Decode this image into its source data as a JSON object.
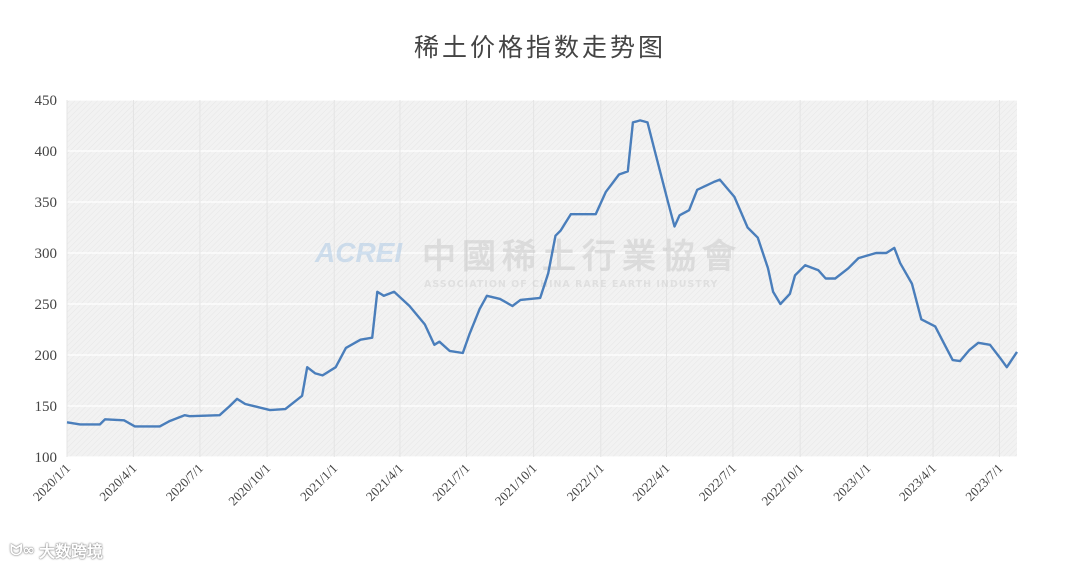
{
  "chart_data": {
    "type": "line",
    "title": "稀土价格指数走势图",
    "xlabel": "",
    "ylabel": "",
    "ylim": [
      100,
      450
    ],
    "xlim": [
      "2020-01-01",
      "2023-07-25"
    ],
    "yticks": [
      "100",
      "150",
      "200",
      "250",
      "300",
      "350",
      "400",
      "450"
    ],
    "xticks": [
      "2020/1/1",
      "2020/4/1",
      "2020/7/1",
      "2020/10/1",
      "2021/1/1",
      "2021/4/1",
      "2021/7/1",
      "2021/10/1",
      "2022/1/1",
      "2022/4/1",
      "2022/7/1",
      "2022/10/1",
      "2023/1/1",
      "2023/4/1",
      "2023/7/1"
    ],
    "grid": true,
    "legend": "none",
    "colors": {
      "line": "#4a7ebb",
      "plot_bg": "#f1f1f1",
      "grid": "#ffffff"
    },
    "series": [
      {
        "x": [
          "2020-01-01",
          "2020-01-19",
          "2020-02-15",
          "2020-02-22",
          "2020-03-19",
          "2020-04-03",
          "2020-05-07",
          "2020-05-20",
          "2020-06-10",
          "2020-06-17",
          "2020-07-28",
          "2020-08-11",
          "2020-08-21",
          "2020-09-01",
          "2020-10-05",
          "2020-10-26",
          "2020-11-09",
          "2020-11-18",
          "2020-11-25",
          "2020-12-06",
          "2020-12-16",
          "2021-01-03",
          "2021-01-17",
          "2021-02-06",
          "2021-02-22",
          "2021-03-01",
          "2021-03-10",
          "2021-03-24",
          "2021-04-14",
          "2021-05-05",
          "2021-05-18",
          "2021-05-25",
          "2021-06-08",
          "2021-06-26",
          "2021-07-05",
          "2021-07-19",
          "2021-07-29",
          "2021-08-16",
          "2021-09-02",
          "2021-09-13",
          "2021-10-10",
          "2021-10-21",
          "2021-10-31",
          "2021-11-07",
          "2021-11-21",
          "2021-12-25",
          "2022-01-08",
          "2022-01-26",
          "2022-02-07",
          "2022-02-14",
          "2022-02-24",
          "2022-03-06",
          "2022-03-16",
          "2022-03-25",
          "2022-04-03",
          "2022-04-12",
          "2022-04-19",
          "2022-05-02",
          "2022-05-13",
          "2022-06-06",
          "2022-06-13",
          "2022-07-03",
          "2022-07-21",
          "2022-08-04",
          "2022-08-18",
          "2022-08-25",
          "2022-09-04",
          "2022-09-17",
          "2022-09-24",
          "2022-10-08",
          "2022-10-26",
          "2022-11-05",
          "2022-11-18",
          "2022-12-06",
          "2022-12-20",
          "2023-01-13",
          "2023-01-27",
          "2023-02-07",
          "2023-02-15",
          "2023-03-03",
          "2023-03-16",
          "2023-04-04",
          "2023-04-17",
          "2023-04-28",
          "2023-05-08",
          "2023-05-21",
          "2023-06-02",
          "2023-06-18",
          "2023-07-02",
          "2023-07-11",
          "2023-07-25"
        ],
        "y": [
          134,
          132,
          132,
          137,
          136,
          130,
          130,
          135,
          141,
          140,
          141,
          150,
          157,
          152,
          146,
          147,
          155,
          160,
          188,
          182,
          180,
          188,
          207,
          215,
          217,
          262,
          258,
          262,
          248,
          230,
          210,
          213,
          204,
          202,
          220,
          245,
          258,
          255,
          248,
          254,
          256,
          280,
          317,
          322,
          338,
          338,
          360,
          377,
          380,
          428,
          430,
          428,
          400,
          375,
          350,
          326,
          337,
          342,
          362,
          370,
          372,
          355,
          325,
          315,
          285,
          262,
          250,
          260,
          278,
          288,
          283,
          275,
          275,
          285,
          295,
          300,
          300,
          305,
          290,
          270,
          235,
          228,
          210,
          195,
          194,
          205,
          212,
          210,
          197,
          188,
          203
        ]
      }
    ]
  },
  "watermark": {
    "logo": "ACREI",
    "name_cn": "中國稀土行業協會",
    "name_en": "ASSOCIATION OF CHINA RARE EARTH INDUSTRY"
  },
  "footer": {
    "brand": "大数跨境"
  }
}
